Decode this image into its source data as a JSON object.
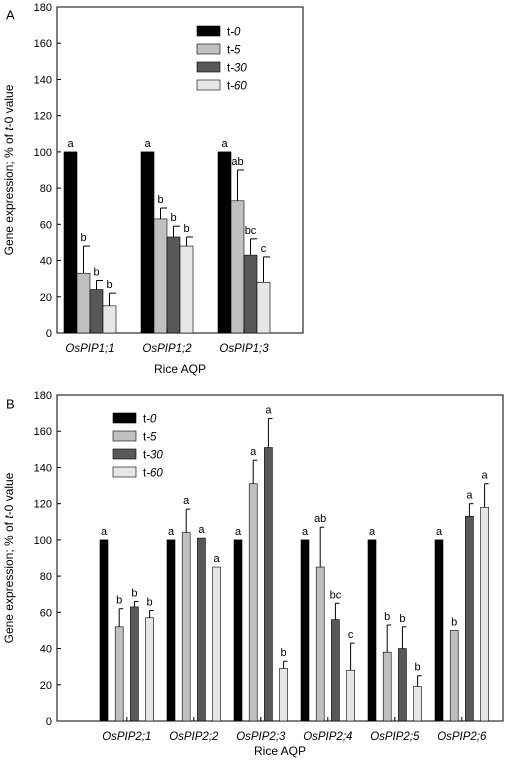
{
  "chart_data": [
    {
      "panel": "A",
      "type": "bar",
      "ylabel_parts": [
        "Gene expression; % of ",
        "t",
        "-0 value"
      ],
      "xlabel": "Rice AQP",
      "ylim": [
        0,
        180
      ],
      "yticks": [
        "0",
        "20",
        "40",
        "60",
        "80",
        "100",
        "120",
        "140",
        "160",
        "180"
      ],
      "categories": [
        "OsPIP1;1",
        "OsPIP1;2",
        "OsPIP1;3"
      ],
      "legend_position": "top-right",
      "series": [
        {
          "name": "t-0",
          "name_parts": [
            "t",
            "-0"
          ],
          "color": "#000000",
          "values": [
            100,
            100,
            100
          ],
          "errors": [
            0,
            0,
            0
          ],
          "letters": [
            "a",
            "a",
            "a"
          ]
        },
        {
          "name": "t-5",
          "name_parts": [
            "t",
            "-5"
          ],
          "color": "#c0c0c0",
          "values": [
            33,
            63,
            73
          ],
          "errors": [
            15,
            6,
            17
          ],
          "letters": [
            "b",
            "b",
            "ab"
          ]
        },
        {
          "name": "t-30",
          "name_parts": [
            "t",
            "-30"
          ],
          "color": "#585858",
          "values": [
            24,
            53,
            43
          ],
          "errors": [
            5,
            6,
            9
          ],
          "letters": [
            "b",
            "b",
            "bc"
          ]
        },
        {
          "name": "t-60",
          "name_parts": [
            "t",
            "-60"
          ],
          "color": "#e6e6e6",
          "values": [
            15,
            48,
            28
          ],
          "errors": [
            7,
            5,
            14
          ],
          "letters": [
            "b",
            "b",
            "c"
          ]
        }
      ]
    },
    {
      "panel": "B",
      "type": "bar",
      "ylabel_parts": [
        "Gene expression; % of ",
        "t",
        "-0 value"
      ],
      "xlabel": "Rice AQP",
      "ylim": [
        0,
        180
      ],
      "yticks": [
        "0",
        "20",
        "40",
        "60",
        "80",
        "100",
        "120",
        "140",
        "160",
        "180"
      ],
      "categories": [
        "OsPIP2;1",
        "OsPIP2;2",
        "OsPIP2;3",
        "OsPIP2;4",
        "OsPIP2;5",
        "OsPIP2;6"
      ],
      "legend_position": "top-left",
      "series": [
        {
          "name": "t-0",
          "name_parts": [
            "t",
            "-0"
          ],
          "color": "#000000",
          "values": [
            100,
            100,
            100,
            100,
            100,
            100
          ],
          "errors": [
            0,
            0,
            0,
            0,
            0,
            0
          ],
          "letters": [
            "a",
            "a",
            "a",
            "a",
            "a",
            "a"
          ]
        },
        {
          "name": "t-5",
          "name_parts": [
            "t",
            "-5"
          ],
          "color": "#c0c0c0",
          "values": [
            52,
            104,
            131,
            85,
            38,
            50
          ],
          "errors": [
            10,
            13,
            13,
            22,
            15,
            0
          ],
          "letters": [
            "b",
            "a",
            "a",
            "ab",
            "b",
            "b"
          ]
        },
        {
          "name": "t-30",
          "name_parts": [
            "t",
            "-30"
          ],
          "color": "#585858",
          "values": [
            63,
            101,
            151,
            56,
            40,
            113
          ],
          "errors": [
            3,
            0,
            16,
            9,
            12,
            7
          ],
          "letters": [
            "b",
            "a",
            "a",
            "bc",
            "b",
            "a"
          ]
        },
        {
          "name": "t-60",
          "name_parts": [
            "t",
            "-60"
          ],
          "color": "#e6e6e6",
          "values": [
            57,
            85,
            29,
            28,
            19,
            118
          ],
          "errors": [
            4,
            0,
            4,
            15,
            6,
            13
          ],
          "letters": [
            "b",
            "a",
            "b",
            "c",
            "b",
            "a"
          ]
        }
      ]
    }
  ]
}
